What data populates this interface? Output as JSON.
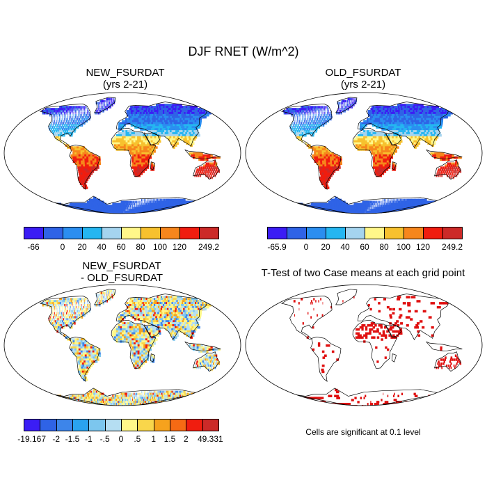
{
  "chart_data": {
    "type": "heatmap",
    "title": "DJF RNET (W/m^2)",
    "panels": [
      {
        "id": "new",
        "title_lines": [
          "NEW_FSURDAT",
          "(yrs 2-21)"
        ],
        "variant": "field",
        "colorbar": {
          "labels": [
            "-66",
            "0",
            "20",
            "40",
            "60",
            "80",
            "100",
            "120",
            "249.2"
          ],
          "colors": [
            "#3b1df5",
            "#2f63e6",
            "#2b8ef0",
            "#25b6f1",
            "#a5d4ef",
            "#fff78a",
            "#f7c12e",
            "#f6861c",
            "#f01d0f",
            "#cc2a28"
          ]
        }
      },
      {
        "id": "old",
        "title_lines": [
          "OLD_FSURDAT",
          "(yrs 2-21)"
        ],
        "variant": "field",
        "colorbar": {
          "labels": [
            "-65.9",
            "0",
            "20",
            "40",
            "60",
            "80",
            "100",
            "120",
            "249.2"
          ],
          "colors": [
            "#3b1df5",
            "#2f63e6",
            "#2b8ef0",
            "#25b6f1",
            "#a5d4ef",
            "#fff78a",
            "#f7c12e",
            "#f6861c",
            "#f01d0f",
            "#cc2a28"
          ]
        }
      },
      {
        "id": "diff",
        "title_lines": [
          "NEW_FSURDAT",
          "- OLD_FSURDAT"
        ],
        "variant": "diff",
        "colorbar": {
          "labels": [
            "-19.167",
            "-2",
            "-1.5",
            "-1",
            "-.5",
            "0",
            ".5",
            "1",
            "1.5",
            "2",
            "49.331"
          ],
          "colors": [
            "#3b1df5",
            "#2f63e6",
            "#3d85ea",
            "#2aa3ef",
            "#7cc6ee",
            "#b5def2",
            "#fff78a",
            "#f9d64b",
            "#f6a21d",
            "#f66a14",
            "#f01d0f",
            "#cc2a28"
          ]
        }
      },
      {
        "id": "ttest",
        "title_lines": [
          "T-Test of two Case means at each grid point"
        ],
        "variant": "ttest",
        "note": "Cells are significant at 0.1 level"
      }
    ]
  }
}
